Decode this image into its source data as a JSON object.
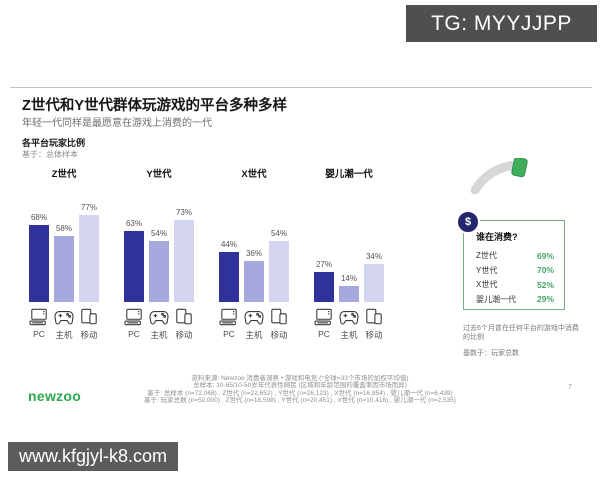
{
  "overlays": {
    "tg_badge": "TG: MYYJJPP",
    "watermark": "www.kfgjyl-k8.com"
  },
  "header": {
    "title": "Z世代和Y世代群体玩游戏的平台多种多样",
    "subtitle": "年轻一代同样是最愿意在游戏上消费的一代"
  },
  "chart_section": {
    "label": "各平台玩家比例",
    "base_note": "基于：总体样本"
  },
  "chart_data": {
    "type": "bar",
    "title": "各平台玩家比例",
    "categories": [
      "PC",
      "主机",
      "移动"
    ],
    "series": [
      {
        "name": "Z世代",
        "values": [
          68,
          58,
          77
        ]
      },
      {
        "name": "Y世代",
        "values": [
          63,
          54,
          73
        ]
      },
      {
        "name": "X世代",
        "values": [
          44,
          36,
          54
        ]
      },
      {
        "name": "婴儿潮一代",
        "values": [
          27,
          14,
          34
        ]
      }
    ],
    "unit": "%",
    "ylim": [
      0,
      100
    ],
    "grid": false,
    "value_labels": true,
    "bar_colors": [
      "#31319c",
      "#a7a8dd",
      "#d4d5ee"
    ]
  },
  "spend_panel": {
    "badge": "$",
    "title": "谁在消费?",
    "rows": [
      {
        "label": "Z世代",
        "value": "69%"
      },
      {
        "label": "Y世代",
        "value": "70%"
      },
      {
        "label": "X世代",
        "value": "52%"
      },
      {
        "label": "婴儿潮一代",
        "value": "29%"
      }
    ],
    "footnote": "过去6个月曾在任何平台的游戏中消费的比例",
    "base_note": "基数于：玩家总数",
    "accent_green": "#49a469"
  },
  "footer": {
    "source_line1": "资料来源: Newzoo 消费者洞察 • 游戏和电竞 (*全球=33个市场的加权平均值)",
    "source_line2": "总样本: 10-65/10-50岁年代表性网民 (区域和年龄范围的覆盖率因市场而异)",
    "source_line3": "基于: 总样本 (n=72,068) , Z世代 (n=22,652) , Y世代 (n=26,123) , X世代 (n=16,854) , 婴儿潮一代 (n=6,439)",
    "source_line4": "基于: 玩家总数 (n=52,000) , Z世代 (n=18,598) , Y世代 (n=20,451) , X世代 (n=10,416) , 婴儿潮一代 (n=2,535)",
    "logo": "newzoo",
    "page_number": "7"
  }
}
